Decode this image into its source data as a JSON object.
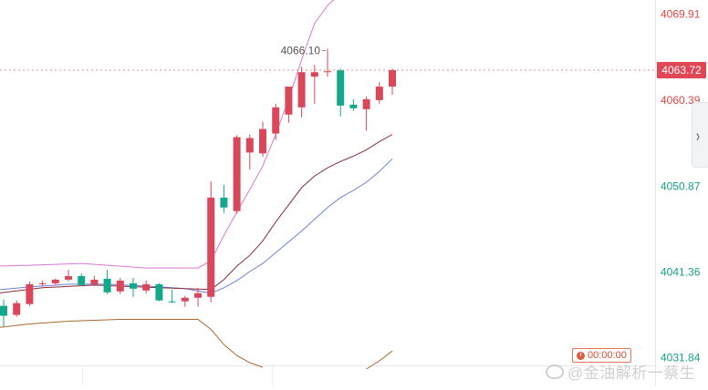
{
  "chart_data": {
    "type": "candlestick",
    "price_axis": {
      "ticks": [
        {
          "value": 4069.91,
          "label": "4069.91",
          "color": "#e04646"
        },
        {
          "value": 4060.39,
          "label": "4060.39",
          "color": "#e04646"
        },
        {
          "value": 4050.87,
          "label": "4050.87",
          "color": "#16a085"
        },
        {
          "value": 4041.36,
          "label": "4041.36",
          "color": "#16a085"
        },
        {
          "value": 4031.84,
          "label": "4031.84",
          "color": "#16a085"
        }
      ],
      "ylim": [
        4031.0,
        4071.5
      ]
    },
    "current_price": {
      "value": 4063.72,
      "label": "4063.72"
    },
    "high_annotation": {
      "value": 4066.1,
      "label": "4066.10"
    },
    "candles": [
      {
        "o": 4037.6,
        "h": 4038.3,
        "l": 4035.3,
        "c": 4036.5
      },
      {
        "o": 4036.6,
        "h": 4038.2,
        "l": 4036.4,
        "c": 4037.9
      },
      {
        "o": 4037.8,
        "h": 4040.3,
        "l": 4037.6,
        "c": 4040.0
      },
      {
        "o": 4040.0,
        "h": 4040.4,
        "l": 4039.8,
        "c": 4040.1
      },
      {
        "o": 4040.1,
        "h": 4040.6,
        "l": 4039.9,
        "c": 4040.5
      },
      {
        "o": 4040.5,
        "h": 4041.6,
        "l": 4040.3,
        "c": 4040.9
      },
      {
        "o": 4040.9,
        "h": 4041.2,
        "l": 4039.8,
        "c": 4039.9
      },
      {
        "o": 4040.0,
        "h": 4040.9,
        "l": 4039.8,
        "c": 4040.5
      },
      {
        "o": 4040.6,
        "h": 4041.6,
        "l": 4038.9,
        "c": 4039.1
      },
      {
        "o": 4039.2,
        "h": 4040.7,
        "l": 4038.9,
        "c": 4040.4
      },
      {
        "o": 4040.1,
        "h": 4040.7,
        "l": 4038.6,
        "c": 4039.5
      },
      {
        "o": 4039.3,
        "h": 4040.4,
        "l": 4039.0,
        "c": 4040.0
      },
      {
        "o": 4040.0,
        "h": 4040.1,
        "l": 4038.1,
        "c": 4038.2
      },
      {
        "o": 4038.1,
        "h": 4039.4,
        "l": 4037.9,
        "c": 4038.0
      },
      {
        "o": 4038.1,
        "h": 4038.7,
        "l": 4037.5,
        "c": 4038.5
      },
      {
        "o": 4038.5,
        "h": 4039.6,
        "l": 4037.5,
        "c": 4039.0
      },
      {
        "o": 4038.6,
        "h": 4051.4,
        "l": 4038.0,
        "c": 4049.6
      },
      {
        "o": 4049.6,
        "h": 4051.0,
        "l": 4047.9,
        "c": 4048.5
      },
      {
        "o": 4048.1,
        "h": 4056.5,
        "l": 4047.8,
        "c": 4056.3
      },
      {
        "o": 4054.6,
        "h": 4056.6,
        "l": 4052.7,
        "c": 4056.2
      },
      {
        "o": 4054.5,
        "h": 4058.0,
        "l": 4054.1,
        "c": 4057.2
      },
      {
        "o": 4056.7,
        "h": 4060.0,
        "l": 4056.0,
        "c": 4059.6
      },
      {
        "o": 4058.8,
        "h": 4061.9,
        "l": 4057.9,
        "c": 4061.9
      },
      {
        "o": 4059.6,
        "h": 4064.1,
        "l": 4058.5,
        "c": 4063.5
      },
      {
        "o": 4063.0,
        "h": 4064.3,
        "l": 4060.0,
        "c": 4063.5
      },
      {
        "o": 4063.5,
        "h": 4066.1,
        "l": 4063.0,
        "c": 4063.6
      },
      {
        "o": 4063.7,
        "h": 4063.9,
        "l": 4058.6,
        "c": 4059.8
      },
      {
        "o": 4059.9,
        "h": 4060.5,
        "l": 4059.2,
        "c": 4059.5
      },
      {
        "o": 4059.4,
        "h": 4060.8,
        "l": 4057.0,
        "c": 4060.5
      },
      {
        "o": 4060.4,
        "h": 4062.4,
        "l": 4060.0,
        "c": 4061.9
      },
      {
        "o": 4061.9,
        "h": 4063.9,
        "l": 4061.0,
        "c": 4063.72
      }
    ],
    "overlays": [
      {
        "color": "#d87ad0",
        "values": [
          {
            "i": -1,
            "v": 4042.0
          },
          {
            "i": 2,
            "v": 4042.1
          },
          {
            "i": 4,
            "v": 4042.2
          },
          {
            "i": 6,
            "v": 4042.3
          },
          {
            "i": 8,
            "v": 4042.1
          },
          {
            "i": 11,
            "v": 4041.8
          },
          {
            "i": 15,
            "v": 4041.8
          },
          {
            "i": 16,
            "v": 4042.6
          },
          {
            "i": 17,
            "v": 4045.4
          },
          {
            "i": 18,
            "v": 4048.0
          },
          {
            "i": 19,
            "v": 4050.5
          },
          {
            "i": 20,
            "v": 4053.1
          },
          {
            "i": 21,
            "v": 4056.6
          },
          {
            "i": 22,
            "v": 4060.5
          },
          {
            "i": 23,
            "v": 4064.9
          },
          {
            "i": 24,
            "v": 4068.9
          },
          {
            "i": 25,
            "v": 4070.9
          },
          {
            "i": 26,
            "v": 4072.2
          }
        ]
      },
      {
        "color": "#6f7fd6",
        "values": [
          {
            "i": -1,
            "v": 4039.3
          },
          {
            "i": 2,
            "v": 4039.7
          },
          {
            "i": 5,
            "v": 4040.0
          },
          {
            "i": 8,
            "v": 4040.0
          },
          {
            "i": 11,
            "v": 4039.8
          },
          {
            "i": 14,
            "v": 4039.5
          },
          {
            "i": 16,
            "v": 4039.0
          },
          {
            "i": 17,
            "v": 4039.6
          },
          {
            "i": 18,
            "v": 4040.4
          },
          {
            "i": 19,
            "v": 4041.4
          },
          {
            "i": 20,
            "v": 4042.3
          },
          {
            "i": 21,
            "v": 4043.5
          },
          {
            "i": 22,
            "v": 4044.7
          },
          {
            "i": 23,
            "v": 4045.9
          },
          {
            "i": 24,
            "v": 4047.2
          },
          {
            "i": 25,
            "v": 4048.5
          },
          {
            "i": 26,
            "v": 4049.6
          },
          {
            "i": 27,
            "v": 4050.4
          },
          {
            "i": 28,
            "v": 4051.3
          },
          {
            "i": 29,
            "v": 4052.5
          },
          {
            "i": 30,
            "v": 4053.9
          }
        ]
      },
      {
        "color": "#8a2b3c",
        "values": [
          {
            "i": -1,
            "v": 4038.9
          },
          {
            "i": 3,
            "v": 4039.6
          },
          {
            "i": 7,
            "v": 4039.9
          },
          {
            "i": 12,
            "v": 4039.6
          },
          {
            "i": 16,
            "v": 4039.4
          },
          {
            "i": 17,
            "v": 4040.5
          },
          {
            "i": 18,
            "v": 4042.0
          },
          {
            "i": 19,
            "v": 4043.2
          },
          {
            "i": 20,
            "v": 4044.8
          },
          {
            "i": 21,
            "v": 4046.9
          },
          {
            "i": 22,
            "v": 4048.8
          },
          {
            "i": 23,
            "v": 4050.7
          },
          {
            "i": 24,
            "v": 4052.0
          },
          {
            "i": 25,
            "v": 4052.9
          },
          {
            "i": 26,
            "v": 4053.6
          },
          {
            "i": 27,
            "v": 4054.2
          },
          {
            "i": 28,
            "v": 4054.9
          },
          {
            "i": 29,
            "v": 4055.8
          },
          {
            "i": 30,
            "v": 4056.6
          }
        ]
      },
      {
        "color": "#a8682f",
        "values": [
          {
            "i": -1,
            "v": 4035.1
          },
          {
            "i": 2,
            "v": 4035.6
          },
          {
            "i": 5,
            "v": 4035.9
          },
          {
            "i": 9,
            "v": 4036.1
          },
          {
            "i": 13,
            "v": 4036.1
          },
          {
            "i": 15,
            "v": 4036.1
          },
          {
            "i": 16,
            "v": 4035.0
          },
          {
            "i": 17,
            "v": 4033.3
          },
          {
            "i": 18,
            "v": 4032.1
          },
          {
            "i": 19,
            "v": 4031.3
          },
          {
            "i": 20,
            "v": 4030.8
          }
        ]
      },
      {
        "color": "#a8682f",
        "values": [
          {
            "i": 28,
            "v": 4030.6
          },
          {
            "i": 29,
            "v": 4031.5
          },
          {
            "i": 30,
            "v": 4032.6
          }
        ]
      }
    ],
    "colors": {
      "up": "#d9475a",
      "down": "#14a88a",
      "grid": "#eef0f3",
      "price_line": "#e35b6a"
    }
  },
  "countdown": "00:00:00",
  "watermark": "@金油解析一蔡生"
}
